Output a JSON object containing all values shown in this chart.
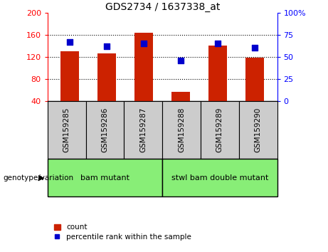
{
  "title": "GDS2734 / 1637338_at",
  "samples": [
    "GSM159285",
    "GSM159286",
    "GSM159287",
    "GSM159288",
    "GSM159289",
    "GSM159290"
  ],
  "counts": [
    130,
    126,
    163,
    56,
    140,
    118
  ],
  "percentiles": [
    67,
    62,
    65,
    46,
    65,
    60
  ],
  "ylim_left": [
    40,
    200
  ],
  "ylim_right": [
    0,
    100
  ],
  "yticks_left": [
    40,
    80,
    120,
    160,
    200
  ],
  "yticks_right": [
    0,
    25,
    50,
    75,
    100
  ],
  "yticklabels_right": [
    "0",
    "25",
    "50",
    "75",
    "100%"
  ],
  "bar_color": "#cc2200",
  "dot_color": "#0000cc",
  "groups": [
    {
      "label": "bam mutant",
      "start": 0,
      "end": 3
    },
    {
      "label": "stwl bam double mutant",
      "start": 3,
      "end": 6
    }
  ],
  "group_bg_color": "#88ee77",
  "sample_bg_color": "#cccccc",
  "legend_labels": [
    "count",
    "percentile rank within the sample"
  ],
  "genotype_label": "genotype/variation",
  "bar_width": 0.5,
  "dot_size": 35,
  "title_fontsize": 10,
  "tick_fontsize": 8,
  "label_fontsize": 7.5,
  "group_fontsize": 8,
  "legend_fontsize": 7.5
}
